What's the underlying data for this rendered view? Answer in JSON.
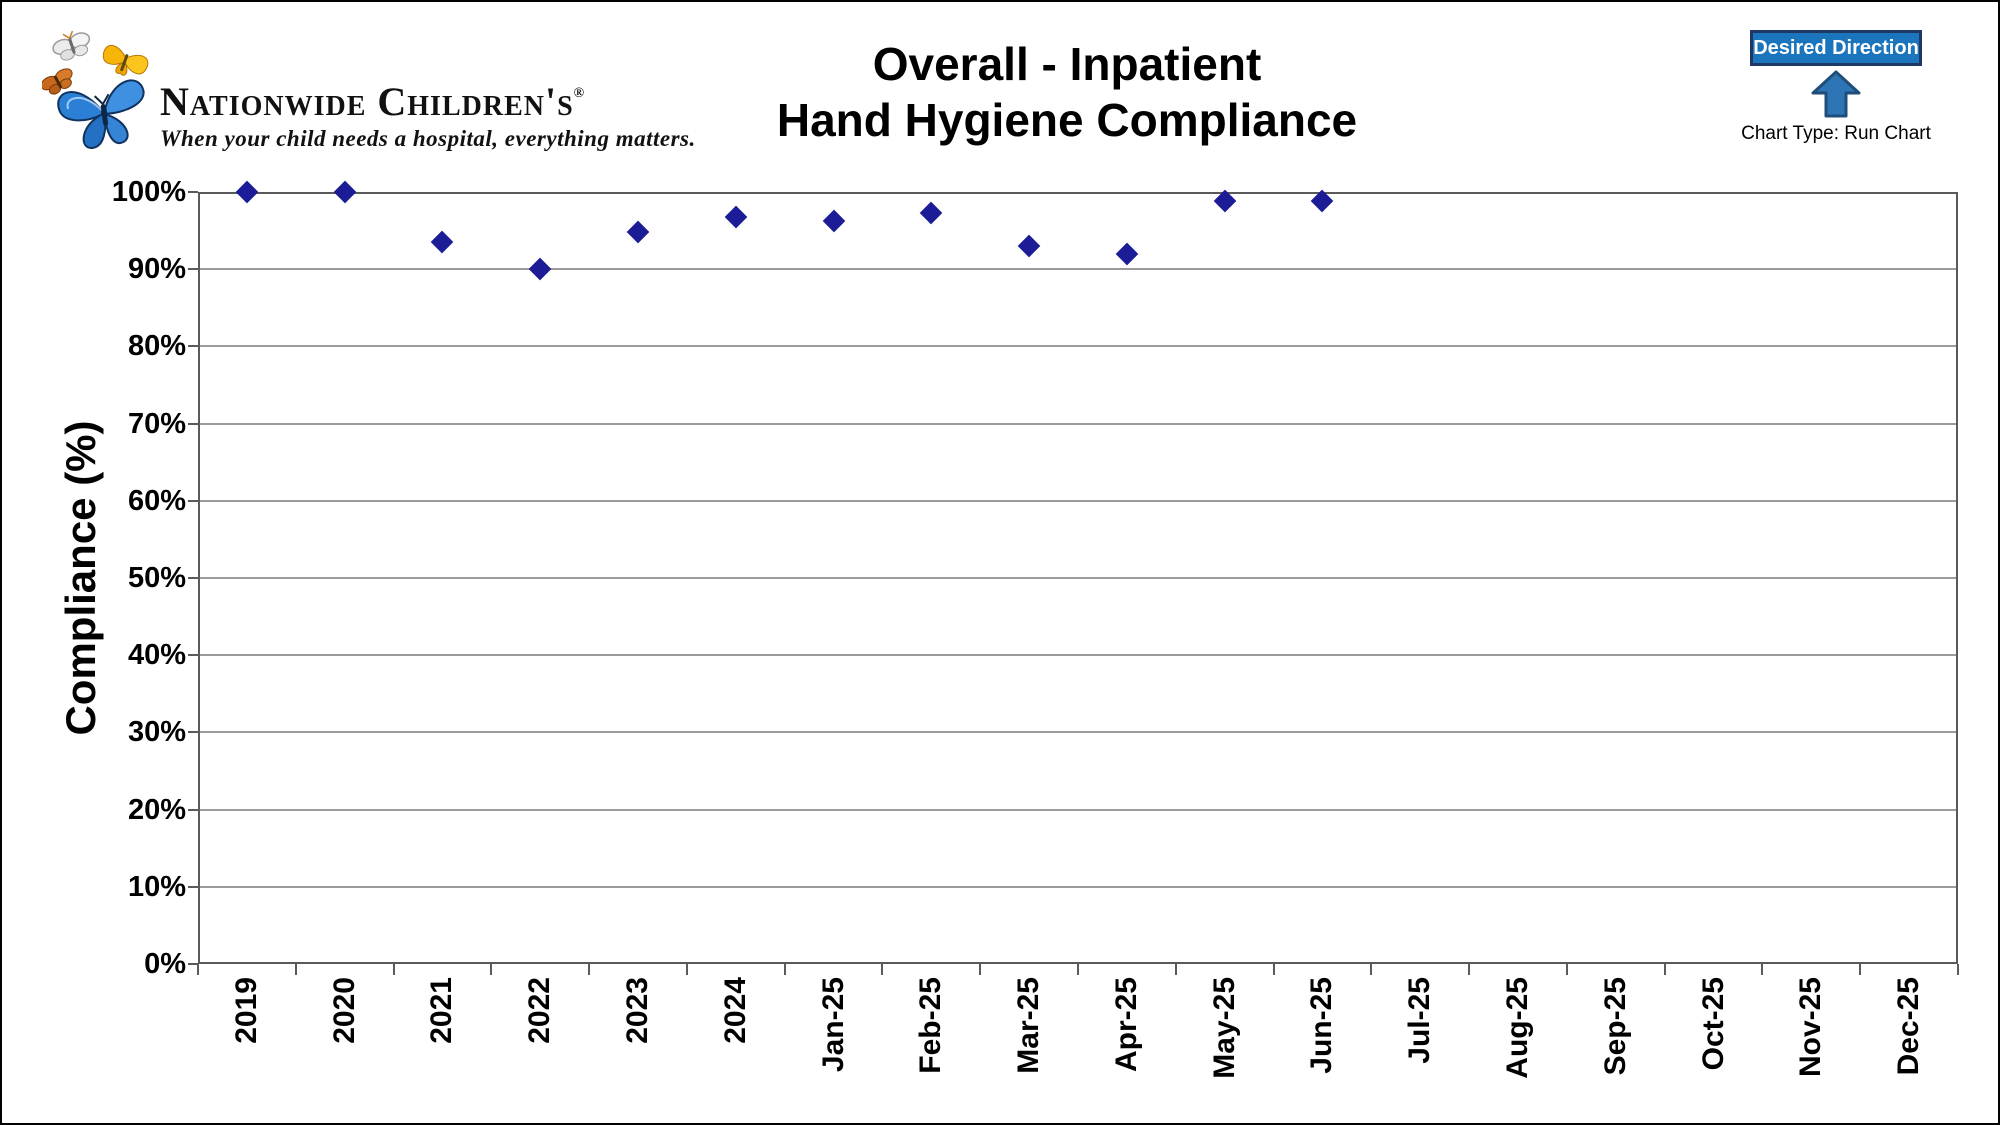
{
  "header": {
    "logo": {
      "name": "Nationwide Children's",
      "registered_mark": "®",
      "tagline": "When your child needs a hospital, everything matters."
    },
    "title_line1": "Overall - Inpatient",
    "title_line2": "Hand Hygiene Compliance",
    "desired_direction": {
      "label": "Desired Direction",
      "chart_type_label": "Chart Type: Run Chart"
    }
  },
  "colors": {
    "marker_navy": "#1c1c96",
    "gridline_gray": "#9b9b9b",
    "axis_gray": "#5a5a5a",
    "badge_blue": "#1b75bc",
    "badge_border_navy": "#1f3864",
    "arrow_blue": "#2e75b6",
    "arrow_border_navy": "#1f4e79"
  },
  "chart_data": {
    "type": "scatter",
    "title": "Overall - Inpatient Hand Hygiene Compliance",
    "xlabel": "",
    "ylabel": "Compliance (%)",
    "ylim": [
      0,
      100
    ],
    "ytick_step": 10,
    "ytick_labels": [
      "0%",
      "10%",
      "20%",
      "30%",
      "40%",
      "50%",
      "60%",
      "70%",
      "80%",
      "90%",
      "100%"
    ],
    "grid": true,
    "legend": "none",
    "marker_shape": "diamond",
    "categories": [
      "2019",
      "2020",
      "2021",
      "2022",
      "2023",
      "2024",
      "Jan-25",
      "Feb-25",
      "Mar-25",
      "Apr-25",
      "May-25",
      "Jun-25",
      "Jul-25",
      "Aug-25",
      "Sep-25",
      "Oct-25",
      "Nov-25",
      "Dec-25"
    ],
    "series": [
      {
        "name": "Overall Inpatient Hand Hygiene Compliance (%)",
        "values": [
          100,
          100,
          93.5,
          90,
          94.8,
          96.7,
          96.3,
          97.3,
          93,
          92,
          98.8,
          98.8,
          null,
          null,
          null,
          null,
          null,
          null
        ]
      }
    ]
  }
}
